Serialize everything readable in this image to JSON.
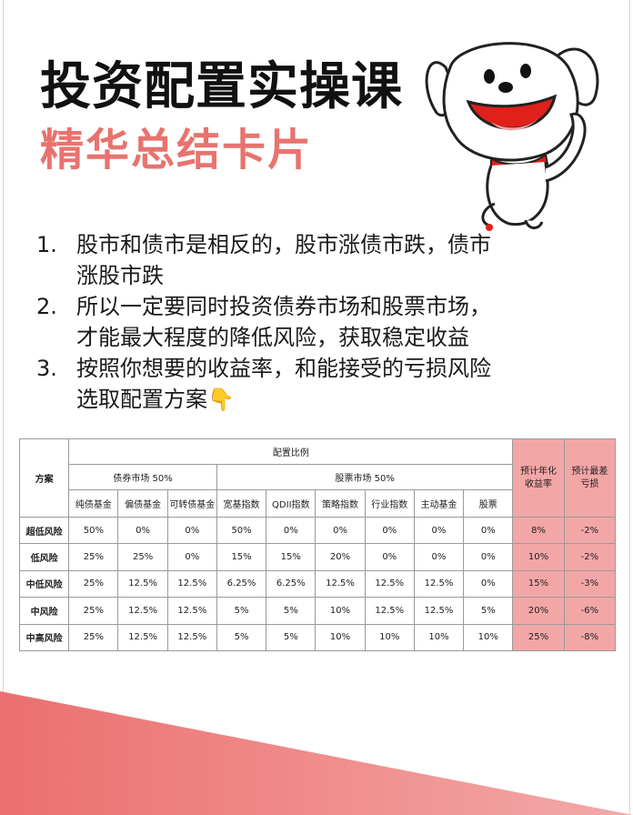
{
  "title": "投资配置实操课",
  "subtitle": "精华总结卡片",
  "points": [
    {
      "num": "1.",
      "lines": [
        "股市和债市是相反的，股市涨债市跌，债市",
        "涨股市跌"
      ]
    },
    {
      "num": "2.",
      "lines": [
        "所以一定要同时投资债券市场和股票市场，",
        "才能最大程度的降低风险，获取稳定收益"
      ]
    },
    {
      "num": "3.",
      "lines": [
        "按照你想要的收益率，和能接受的亏损风险",
        "选取配置方案👇"
      ]
    }
  ],
  "table": {
    "scheme_header": "方案",
    "alloc_header": "配置比例",
    "bond_group": "债券市场 50%",
    "stock_group": "股票市场 50%",
    "return_header": "预计年化收益率",
    "loss_header": "预计最差亏损",
    "columns": [
      "纯债基金",
      "偏债基金",
      "可转债基金",
      "宽基指数",
      "QDII指数",
      "策略指数",
      "行业指数",
      "主动基金",
      "股票"
    ],
    "rows": [
      {
        "name": "超低风险",
        "values": [
          "50%",
          "0%",
          "0%",
          "50%",
          "0%",
          "0%",
          "0%",
          "0%",
          "0%"
        ],
        "ret": "8%",
        "loss": "-2%"
      },
      {
        "name": "低风险",
        "values": [
          "25%",
          "25%",
          "0%",
          "15%",
          "15%",
          "20%",
          "0%",
          "0%",
          "0%"
        ],
        "ret": "10%",
        "loss": "-2%"
      },
      {
        "name": "中低风险",
        "values": [
          "25%",
          "12.5%",
          "12.5%",
          "6.25%",
          "6.25%",
          "12.5%",
          "12.5%",
          "12.5%",
          "0%"
        ],
        "ret": "15%",
        "loss": "-3%"
      },
      {
        "name": "中风险",
        "values": [
          "25%",
          "12.5%",
          "12.5%",
          "5%",
          "5%",
          "10%",
          "12.5%",
          "12.5%",
          "5%"
        ],
        "ret": "20%",
        "loss": "-6%"
      },
      {
        "name": "中高风险",
        "values": [
          "25%",
          "12.5%",
          "12.5%",
          "5%",
          "5%",
          "10%",
          "10%",
          "10%",
          "10%"
        ],
        "ret": "25%",
        "loss": "-8%"
      }
    ]
  },
  "colors": {
    "accent": "#e8736e",
    "highlight": "#f3a6a6",
    "corner": "#ec7a7a"
  },
  "icons": {
    "mascot": "jd-dog-mascot",
    "finger": "pointing-down-hand"
  }
}
